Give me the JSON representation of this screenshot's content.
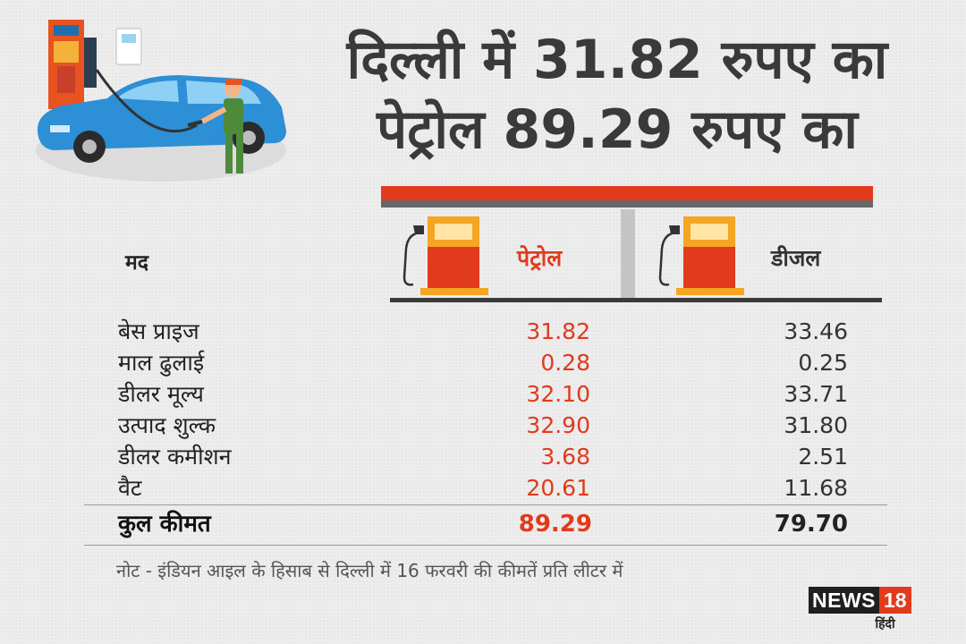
{
  "headline": {
    "line1": "दिल्ली में 31.82 रुपए का",
    "line2": "पेट्रोल 89.29 रुपए का"
  },
  "columns": {
    "item": "मद",
    "petrol": "पेट्रोल",
    "diesel": "डीजल"
  },
  "rows": [
    {
      "label": "बेस प्राइज",
      "petrol": "31.82",
      "diesel": "33.46"
    },
    {
      "label": "माल ढुलाई",
      "petrol": "0.28",
      "diesel": "0.25"
    },
    {
      "label": "डीलर मूल्य",
      "petrol": "32.10",
      "diesel": "33.71"
    },
    {
      "label": "उत्पाद शुल्क",
      "petrol": "32.90",
      "diesel": "31.80"
    },
    {
      "label": "डीलर कमीशन",
      "petrol": "3.68",
      "diesel": "2.51"
    },
    {
      "label": "वैट",
      "petrol": "20.61",
      "diesel": "11.68"
    }
  ],
  "total": {
    "label": "कुल कीमत",
    "petrol": "89.29",
    "diesel": "79.70"
  },
  "note": "नोट - इंडियन आइल के हिसाब से दिल्ली में 16 फरवरी की कीमतें प्रति लीटर में",
  "logo": {
    "brand": "NEWS",
    "number": "18",
    "sub": "हिंदी"
  },
  "colors": {
    "accent": "#e23a1c",
    "dark": "#3a3a3a",
    "background": "#ededed"
  },
  "icons": [
    "fuel-station-illustration",
    "car-icon",
    "fuel-pump-icon"
  ]
}
